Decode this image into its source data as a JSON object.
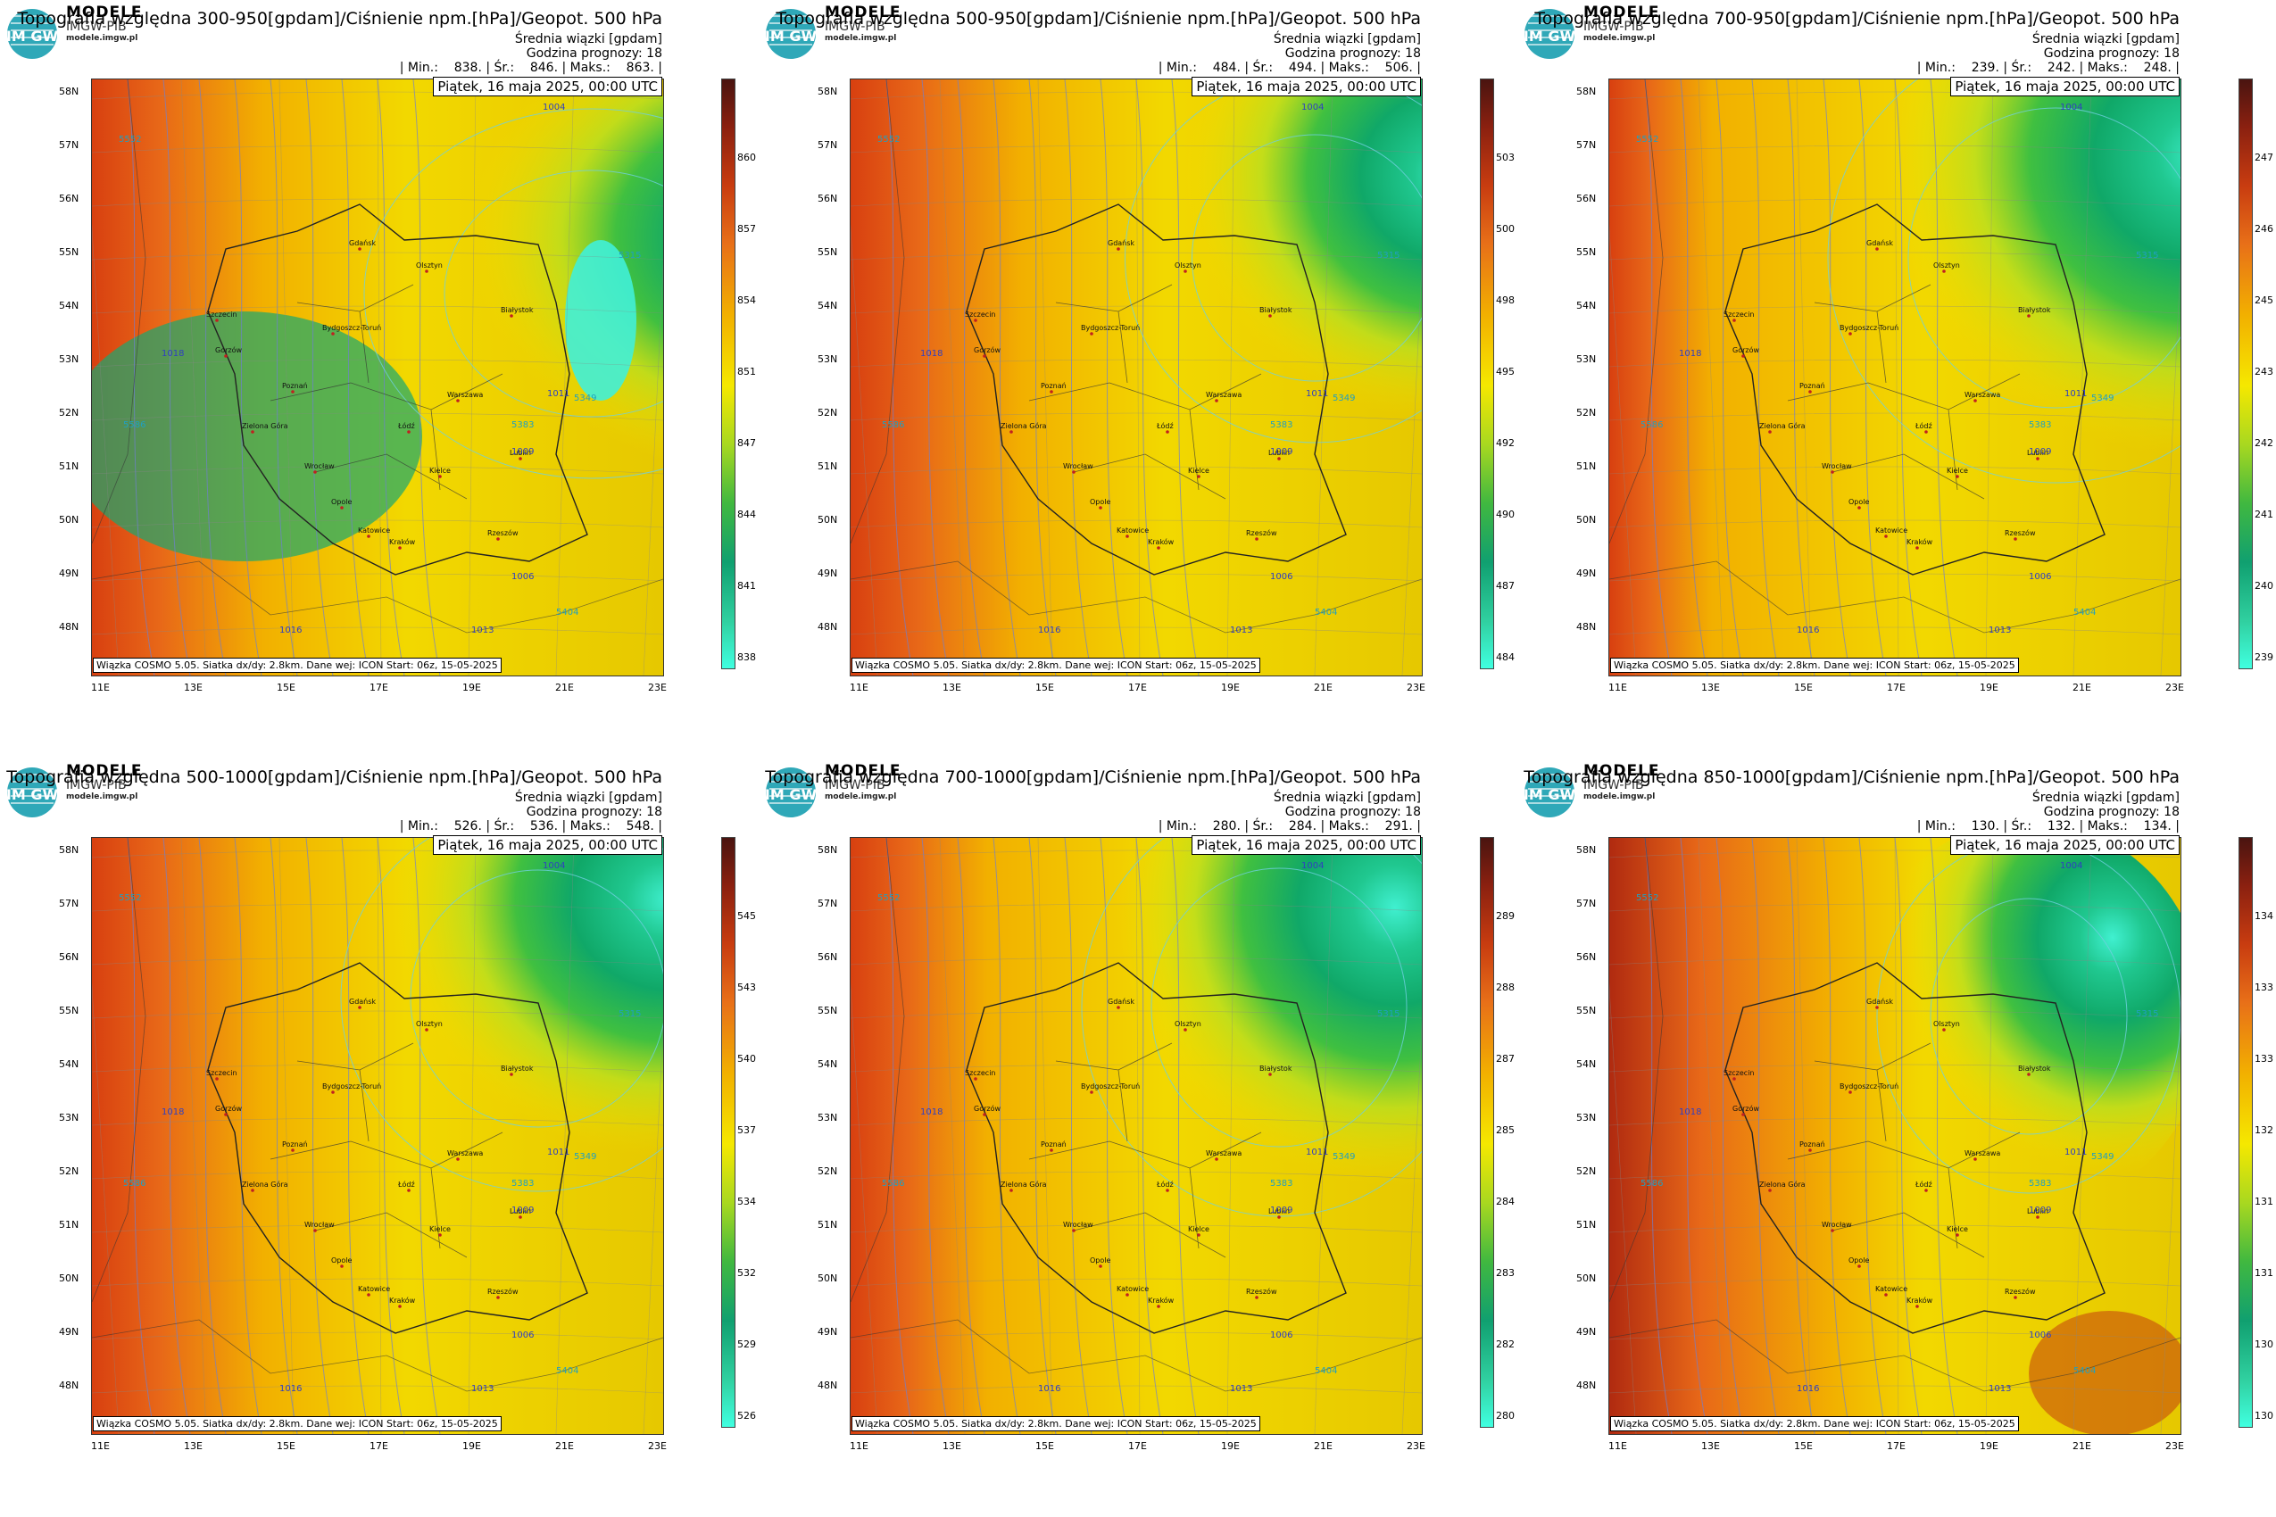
{
  "brand": {
    "name": "MODELE",
    "sub": "IMGW-PIB",
    "url": "modele.imgw.pl",
    "logo_letters": "IM GW"
  },
  "common": {
    "subtitle": "Średnia wiązki [gpdam]",
    "forecast_hour": "Godzina prognozy: 18",
    "date": "Piątek, 16 maja 2025, 00:00 UTC",
    "footer": "Wiązka COSMO 5.05. Siatka dx/dy: 2.8km. Dane wej: ICON Start: 06z, 15-05-2025",
    "lat_labels": [
      "58N",
      "57N",
      "56N",
      "55N",
      "54N",
      "53N",
      "52N",
      "51N",
      "50N",
      "49N",
      "48N"
    ],
    "lon_labels": [
      "11E",
      "13E",
      "15E",
      "17E",
      "19E",
      "21E",
      "23E"
    ],
    "cities": [
      "Gdańsk",
      "Olsztyn",
      "Szczecin",
      "Bydgoszcz-Toruń",
      "Białystok",
      "Gorzów",
      "Poznań",
      "Warszawa",
      "Zielona Góra",
      "Łódź",
      "Lublin",
      "Wrocław",
      "Kielce",
      "Opole",
      "Katowice",
      "Kraków",
      "Rzeszów"
    ],
    "isobar_labels": [
      "1004",
      "1006",
      "1009",
      "1011",
      "1013",
      "1016",
      "1018"
    ],
    "geopot_labels": [
      "5315",
      "5349",
      "5383",
      "5552",
      "5586",
      "5404"
    ]
  },
  "chart_data": [
    {
      "type": "heatmap",
      "title": "Topografia względna 300-950[gpdam]/Ciśnienie npm.[hPa]/Geopot. 500 hPa",
      "stats": {
        "min": "838.",
        "mean": "846.",
        "max": "863."
      },
      "stats_text": "| Min.:    838. | Śr.:    846. | Maks.:    863. |",
      "colorbar_ticks": [
        "860",
        "857",
        "854",
        "851",
        "847",
        "844",
        "841",
        "838"
      ],
      "range": [
        838,
        863
      ]
    },
    {
      "type": "heatmap",
      "title": "Topografia względna 500-950[gpdam]/Ciśnienie npm.[hPa]/Geopot. 500 hPa",
      "stats": {
        "min": "484.",
        "mean": "494.",
        "max": "506."
      },
      "stats_text": "| Min.:    484. | Śr.:    494. | Maks.:    506. |",
      "colorbar_ticks": [
        "503",
        "500",
        "498",
        "495",
        "492",
        "490",
        "487",
        "484"
      ],
      "range": [
        484,
        506
      ]
    },
    {
      "type": "heatmap",
      "title": "Topografia względna 700-950[gpdam]/Ciśnienie npm.[hPa]/Geopot. 500 hPa",
      "stats": {
        "min": "239.",
        "mean": "242.",
        "max": "248."
      },
      "stats_text": "| Min.:    239. | Śr.:    242. | Maks.:    248. |",
      "colorbar_ticks": [
        "247",
        "246",
        "245",
        "243",
        "242",
        "241",
        "240",
        "239"
      ],
      "range": [
        239,
        248
      ]
    },
    {
      "type": "heatmap",
      "title": "Topografia względna 500-1000[gpdam]/Ciśnienie npm.[hPa]/Geopot. 500 hPa",
      "stats": {
        "min": "526.",
        "mean": "536.",
        "max": "548."
      },
      "stats_text": "| Min.:    526. | Śr.:    536. | Maks.:    548. |",
      "colorbar_ticks": [
        "545",
        "543",
        "540",
        "537",
        "534",
        "532",
        "529",
        "526"
      ],
      "range": [
        526,
        548
      ]
    },
    {
      "type": "heatmap",
      "title": "Topografia względna 700-1000[gpdam]/Ciśnienie npm.[hPa]/Geopot. 500 hPa",
      "stats": {
        "min": "280.",
        "mean": "284.",
        "max": "291."
      },
      "stats_text": "| Min.:    280. | Śr.:    284. | Maks.:    291. |",
      "colorbar_ticks": [
        "289",
        "288",
        "287",
        "285",
        "284",
        "283",
        "282",
        "280"
      ],
      "range": [
        280,
        291
      ]
    },
    {
      "type": "heatmap",
      "title": "Topografia względna 850-1000[gpdam]/Ciśnienie npm.[hPa]/Geopot. 500 hPa",
      "stats": {
        "min": "130.",
        "mean": "132.",
        "max": "134."
      },
      "stats_text": "| Min.:    130. | Śr.:    132. | Maks.:    134. |",
      "colorbar_ticks": [
        "134",
        "133",
        "133",
        "132",
        "131",
        "131",
        "130",
        "130"
      ],
      "range": [
        130,
        134
      ]
    }
  ],
  "colors": {
    "low": "#33ffe0",
    "mid_green": "#0fa36a",
    "yellow": "#f5f000",
    "orange": "#f0a000",
    "red": "#c83010",
    "dark": "#5a1010"
  }
}
